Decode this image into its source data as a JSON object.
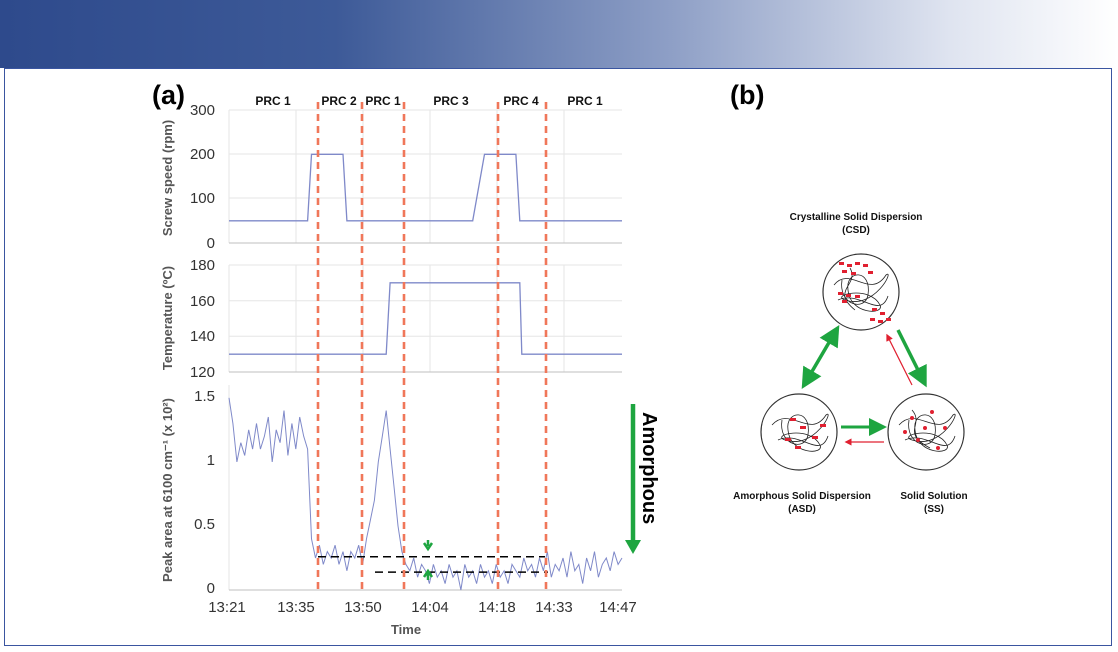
{
  "colors": {
    "series": "#7f89c9",
    "divider": "#f0775a",
    "green": "#1ea540",
    "red": "#e02030",
    "banner_start": "#2e4a8c"
  },
  "panel_a": {
    "label": "(a)",
    "phases": [
      "PRC 1",
      "PRC 2",
      "PRC 1",
      "PRC 3",
      "PRC 4",
      "PRC 1"
    ],
    "x_label": "Time",
    "x_ticks": [
      "13:21",
      "13:35",
      "13:50",
      "14:04",
      "14:18",
      "14:33",
      "14:47"
    ],
    "amorphous_label": "Amorphous"
  },
  "chart_data": [
    {
      "type": "line",
      "ylabel": "Screw speed (rpm)",
      "ylim": [
        0,
        300
      ],
      "yticks": [
        "0",
        "100",
        "200",
        "300"
      ],
      "x": [
        0,
        0.2,
        0.21,
        0.29,
        0.3,
        0.62,
        0.65,
        0.73,
        0.74,
        1.0
      ],
      "values": [
        50,
        50,
        200,
        200,
        50,
        50,
        200,
        200,
        50,
        50
      ]
    },
    {
      "type": "line",
      "ylabel": "Temperature (ºC)",
      "ylim": [
        120,
        180
      ],
      "yticks": [
        "120",
        "140",
        "160",
        "180"
      ],
      "x": [
        0,
        0.4,
        0.41,
        0.74,
        0.745,
        1.0
      ],
      "values": [
        130,
        130,
        170,
        170,
        130,
        130
      ]
    },
    {
      "type": "line",
      "ylabel": "Peak area at 6100 cm⁻¹ (x 10²)",
      "ylim": [
        0,
        1.6
      ],
      "yticks": [
        "0",
        "0.5",
        "1",
        "1.5"
      ],
      "x": [
        0,
        0.01,
        0.02,
        0.03,
        0.04,
        0.05,
        0.06,
        0.07,
        0.08,
        0.09,
        0.1,
        0.11,
        0.12,
        0.13,
        0.14,
        0.15,
        0.16,
        0.17,
        0.18,
        0.19,
        0.2,
        0.21,
        0.22,
        0.23,
        0.24,
        0.25,
        0.26,
        0.27,
        0.28,
        0.29,
        0.3,
        0.31,
        0.32,
        0.33,
        0.34,
        0.35,
        0.36,
        0.37,
        0.38,
        0.39,
        0.4,
        0.41,
        0.42,
        0.43,
        0.44,
        0.45,
        0.46,
        0.47,
        0.48,
        0.49,
        0.5,
        0.51,
        0.52,
        0.53,
        0.54,
        0.55,
        0.56,
        0.57,
        0.58,
        0.59,
        0.6,
        0.61,
        0.62,
        0.63,
        0.64,
        0.65,
        0.66,
        0.67,
        0.68,
        0.69,
        0.7,
        0.71,
        0.72,
        0.73,
        0.74,
        0.75,
        0.76,
        0.77,
        0.78,
        0.79,
        0.8,
        0.81,
        0.82,
        0.83,
        0.84,
        0.85,
        0.86,
        0.87,
        0.88,
        0.89,
        0.9,
        0.91,
        0.92,
        0.93,
        0.94,
        0.95,
        0.96,
        0.97,
        0.98,
        0.99,
        1.0
      ],
      "values": [
        1.5,
        1.3,
        1.0,
        1.15,
        1.05,
        1.25,
        1.1,
        1.3,
        1.1,
        1.2,
        1.35,
        1.0,
        1.25,
        1.15,
        1.4,
        1.05,
        1.3,
        1.1,
        1.35,
        1.2,
        1.1,
        0.4,
        0.25,
        0.35,
        0.2,
        0.3,
        0.25,
        0.35,
        0.2,
        0.3,
        0.15,
        0.3,
        0.25,
        0.35,
        0.2,
        0.4,
        0.55,
        0.7,
        1.0,
        1.2,
        1.4,
        1.1,
        0.8,
        0.5,
        0.3,
        0.2,
        0.15,
        0.25,
        0.1,
        0.2,
        0.15,
        0.05,
        0.2,
        0.1,
        0.15,
        0.05,
        0.2,
        0.1,
        0.15,
        0.0,
        0.2,
        0.1,
        0.15,
        0.05,
        0.2,
        0.1,
        0.15,
        0.05,
        0.2,
        0.1,
        0.15,
        0.05,
        0.2,
        0.15,
        0.1,
        0.25,
        0.15,
        0.2,
        0.1,
        0.25,
        0.15,
        0.3,
        0.1,
        0.2,
        0.15,
        0.25,
        0.1,
        0.3,
        0.15,
        0.2,
        0.05,
        0.25,
        0.15,
        0.3,
        0.1,
        0.2,
        0.25,
        0.15,
        0.3,
        0.2,
        0.25
      ],
      "reference_lines": [
        0.26,
        0.14
      ]
    }
  ],
  "panel_b": {
    "label": "(b)",
    "csd_name": "Crystalline Solid Dispersion",
    "csd_abbr": "(CSD)",
    "asd_name": "Amorphous Solid Dispersion",
    "asd_abbr": "(ASD)",
    "ss_name": "Solid Solution",
    "ss_abbr": "(SS)"
  }
}
